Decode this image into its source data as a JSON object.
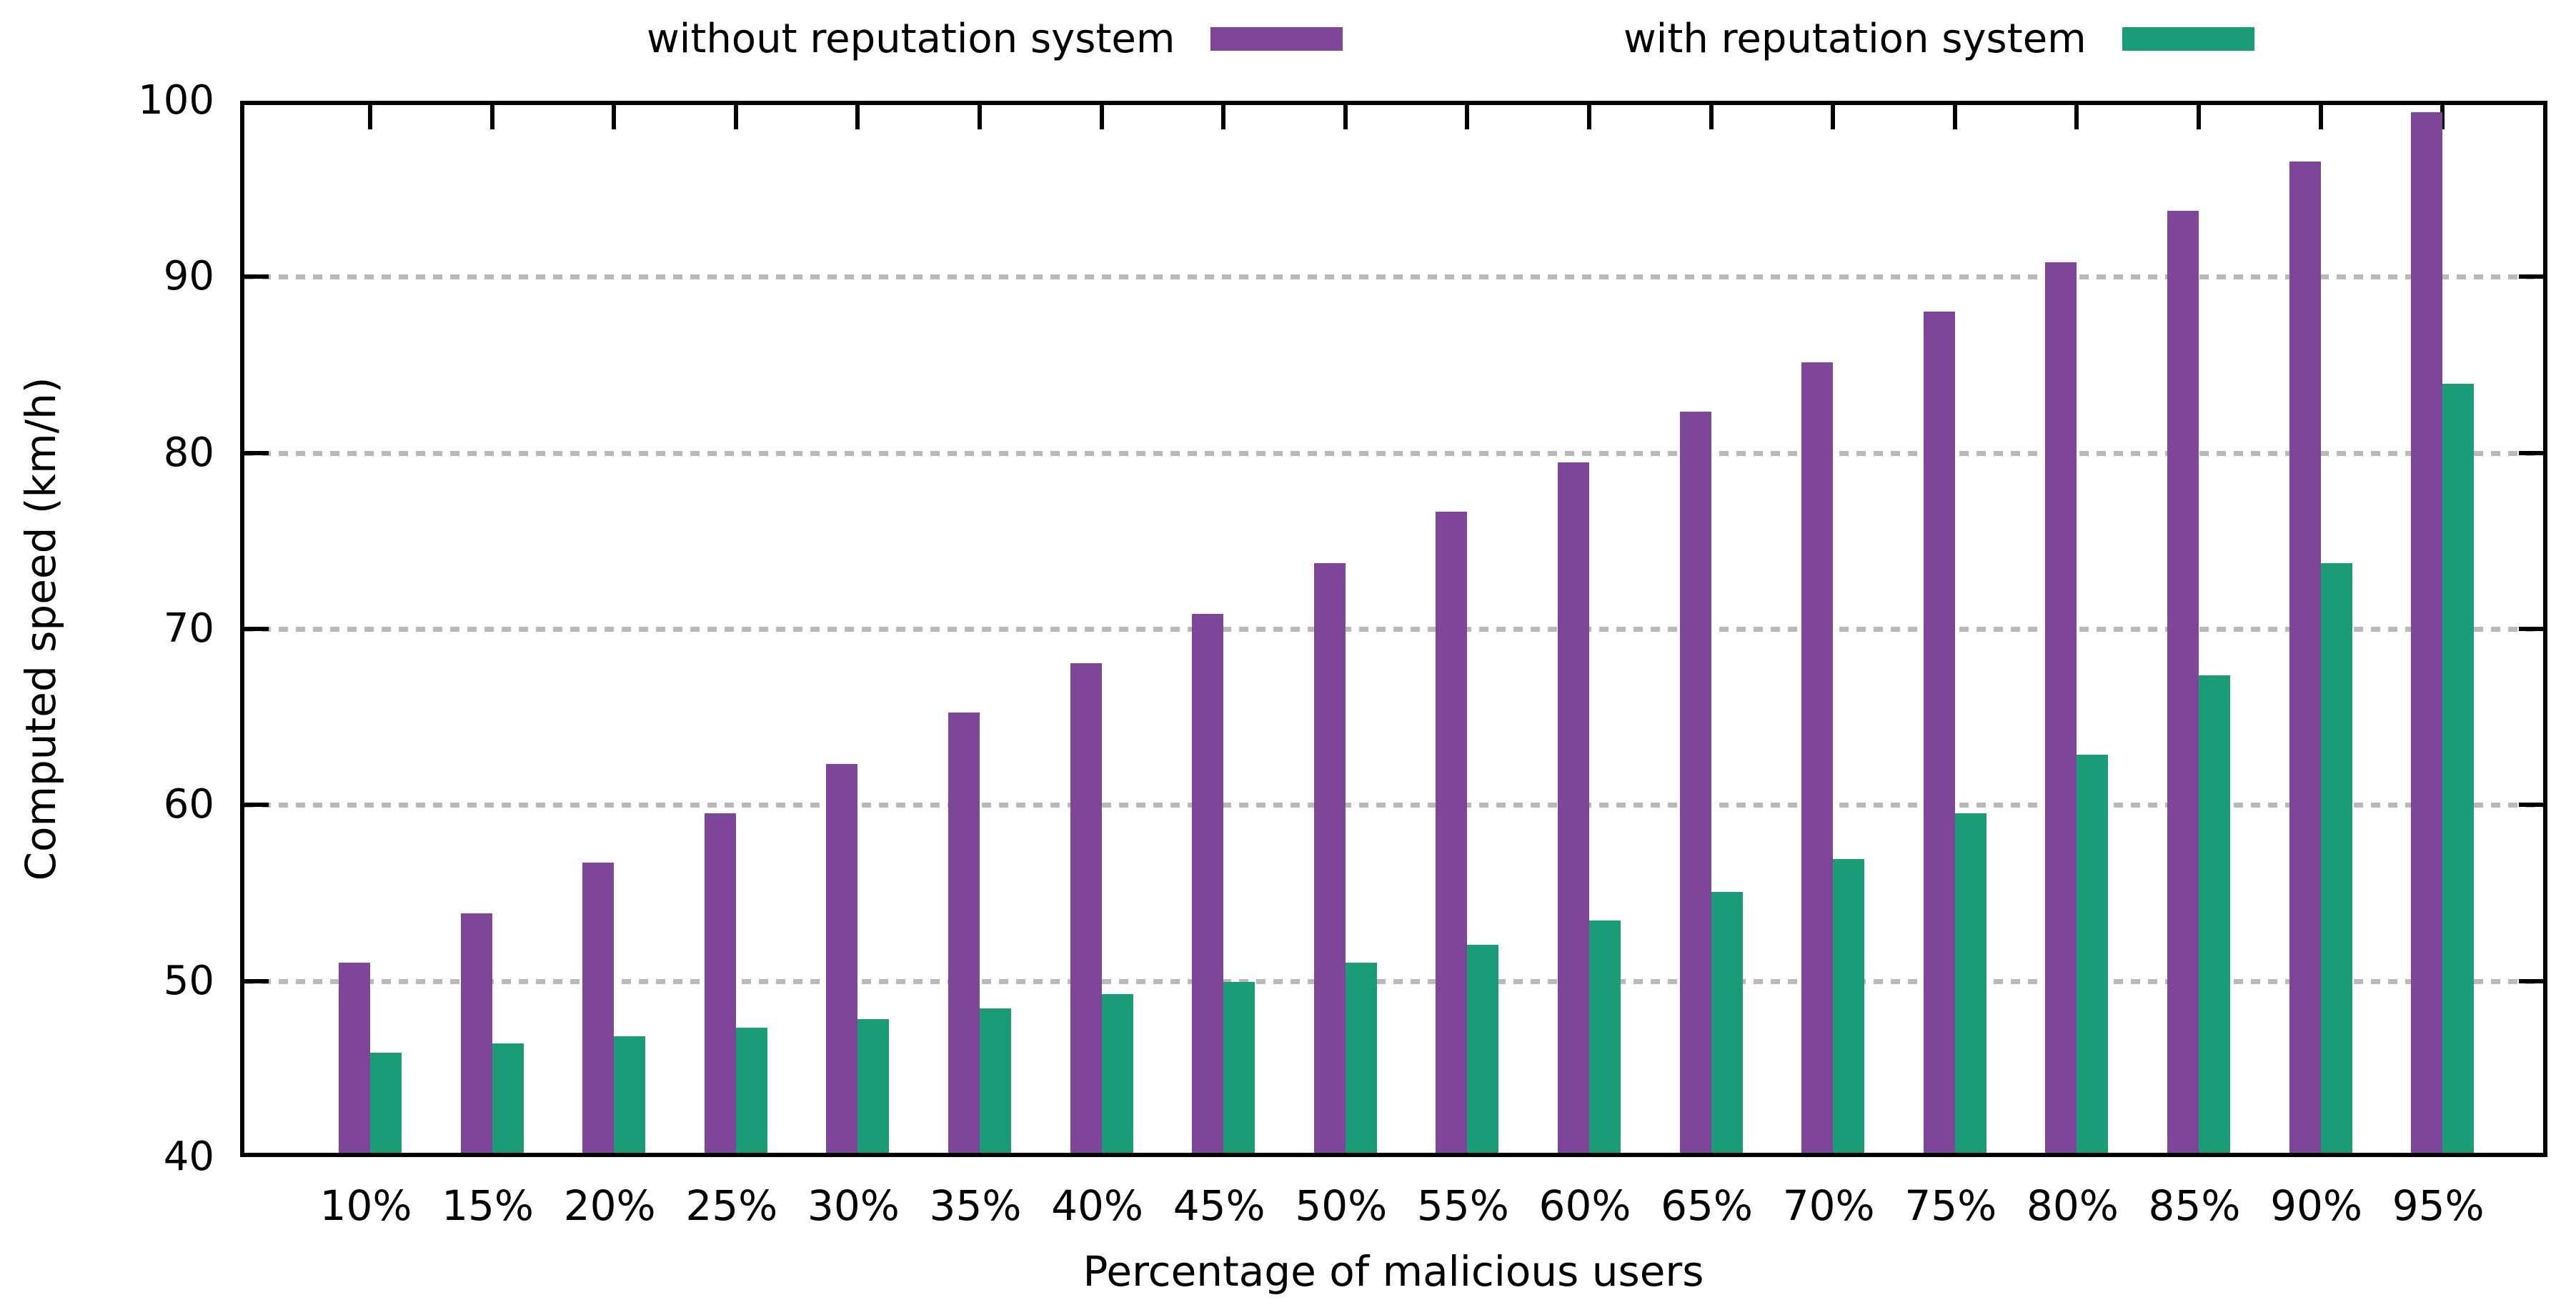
{
  "chart_data": {
    "type": "bar",
    "title": "",
    "xlabel": "Percentage of malicious users",
    "ylabel": "Computed speed (km/h)",
    "ylim": [
      40,
      100
    ],
    "yticks": [
      40,
      50,
      60,
      70,
      80,
      90,
      100
    ],
    "grid": "horizontal-dashed",
    "grid_values": [
      50,
      60,
      70,
      80,
      90
    ],
    "gridline_color": "#b9b9b9",
    "frame_color": "#000000",
    "legend_position": "top",
    "categories": [
      "10%",
      "15%",
      "20%",
      "25%",
      "30%",
      "35%",
      "40%",
      "45%",
      "50%",
      "55%",
      "60%",
      "65%",
      "70%",
      "75%",
      "80%",
      "85%",
      "90%",
      "95%"
    ],
    "series": [
      {
        "name": "without reputation system",
        "color": "#7D4698",
        "values": [
          50.8,
          53.6,
          56.5,
          59.3,
          62.1,
          65.0,
          67.8,
          70.6,
          73.5,
          76.4,
          79.2,
          82.1,
          84.9,
          87.8,
          90.6,
          93.5,
          96.3,
          99.1
        ]
      },
      {
        "name": "with reputation system",
        "color": "#1A9C77",
        "values": [
          45.7,
          46.2,
          46.6,
          47.1,
          47.6,
          48.2,
          49.0,
          49.7,
          50.8,
          51.8,
          53.2,
          54.8,
          56.7,
          59.3,
          62.6,
          67.1,
          73.5,
          83.7
        ]
      }
    ]
  }
}
